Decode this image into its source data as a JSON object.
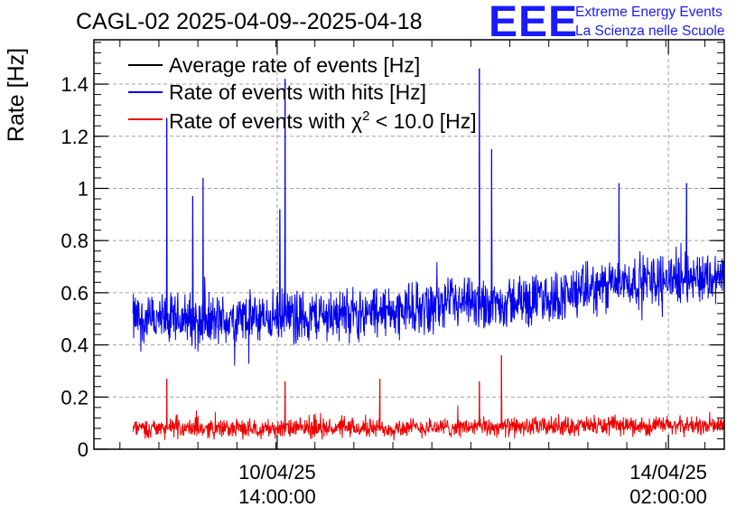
{
  "chart_data": {
    "type": "line",
    "title": "CAGL-02 2025-04-09--2025-04-18",
    "ylabel": "Rate [Hz]",
    "xlabel": "",
    "ylim": [
      0,
      1.57
    ],
    "xlim_hours": [
      0,
      97
    ],
    "grid": true,
    "y_ticks": [
      0,
      0.2,
      0.4,
      0.6,
      0.8,
      1,
      1.2,
      1.4
    ],
    "y_tick_labels": [
      "0",
      "0.2",
      "0.4",
      "0.6",
      "0.8",
      "1",
      "1.2",
      "1.4"
    ],
    "x_ticks": [
      {
        "hours": 28.2,
        "date": "10/04/25",
        "time": "14:00:00"
      },
      {
        "hours": 88.4,
        "date": "14/04/25",
        "time": "02:00:00"
      }
    ],
    "legend": {
      "placement": "top-left",
      "entries": [
        {
          "label": "Average rate of events [Hz]",
          "color": "#000000"
        },
        {
          "label": "Rate of events with hits [Hz]",
          "color": "#0000ee"
        },
        {
          "label_prefix": "Rate of events with ",
          "label_symbol": "χ",
          "label_sup": "2",
          "label_suffix": " < 10.0 [Hz]",
          "color": "#ee0000"
        }
      ]
    },
    "series": [
      {
        "name": "Rate of events with hits [Hz]",
        "color": "#0000ee",
        "x_hours": [
          6,
          10,
          14,
          18,
          22,
          26,
          30,
          34,
          38,
          42,
          46,
          50,
          54,
          58,
          62,
          66,
          70,
          74,
          78,
          82,
          86,
          90,
          94,
          97
        ],
        "mean": [
          0.5,
          0.49,
          0.5,
          0.49,
          0.5,
          0.5,
          0.51,
          0.51,
          0.52,
          0.52,
          0.53,
          0.54,
          0.55,
          0.55,
          0.56,
          0.57,
          0.58,
          0.6,
          0.62,
          0.64,
          0.65,
          0.66,
          0.66,
          0.66
        ],
        "spread": 0.095,
        "spikes": [
          {
            "hours": 11.2,
            "value": 1.27
          },
          {
            "hours": 15.2,
            "value": 0.97
          },
          {
            "hours": 16.8,
            "value": 1.04
          },
          {
            "hours": 28.6,
            "value": 0.92
          },
          {
            "hours": 29.4,
            "value": 1.42
          },
          {
            "hours": 59.3,
            "value": 1.46
          },
          {
            "hours": 61.2,
            "value": 1.15
          },
          {
            "hours": 80.8,
            "value": 1.02
          },
          {
            "hours": 91.2,
            "value": 1.02
          }
        ]
      },
      {
        "name": "Rate of events with χ2 < 10.0 [Hz]",
        "color": "#ee0000",
        "x_hours": [
          6,
          20,
          40,
          60,
          80,
          97
        ],
        "mean": [
          0.08,
          0.08,
          0.08,
          0.085,
          0.09,
          0.09
        ],
        "spread": 0.035,
        "spikes": [
          {
            "hours": 11.2,
            "value": 0.27
          },
          {
            "hours": 29.4,
            "value": 0.26
          },
          {
            "hours": 44.0,
            "value": 0.27
          },
          {
            "hours": 59.3,
            "value": 0.26
          },
          {
            "hours": 62.7,
            "value": 0.36
          }
        ]
      }
    ]
  },
  "logo": {
    "letters": "EEE",
    "line1": "Extreme Energy Events",
    "line2": "La Scienza nelle Scuole"
  }
}
